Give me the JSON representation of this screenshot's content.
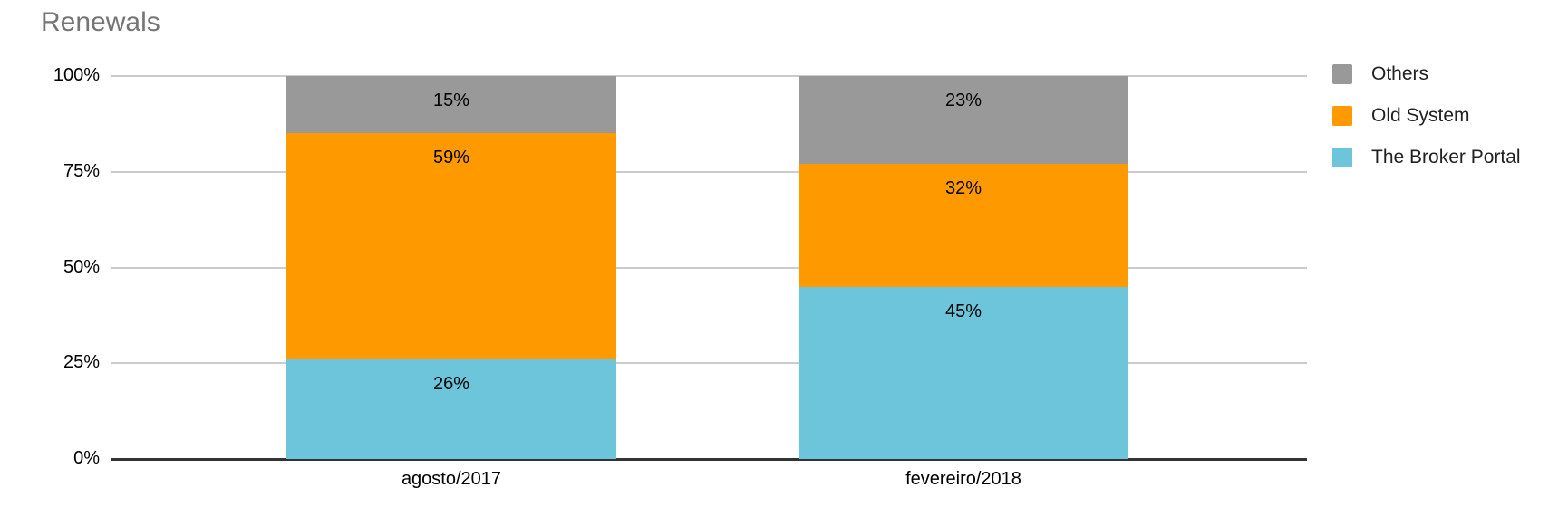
{
  "title": "Renewals",
  "colors": {
    "others": "#999999",
    "old_system": "#ff9900",
    "broker_portal": "#6cc5db",
    "gridline": "#cccccc",
    "axis": "#333333",
    "title_text": "#757575",
    "label_text": "#000000"
  },
  "chart_data": {
    "type": "bar",
    "stacked": true,
    "title": "Renewals",
    "xlabel": "",
    "ylabel": "",
    "ylim": [
      0,
      100
    ],
    "grid": true,
    "legend_position": "right",
    "categories": [
      "agosto/2017",
      "fevereiro/2018"
    ],
    "series": [
      {
        "name": "The Broker Portal",
        "color": "#6cc5db",
        "values": [
          26,
          45
        ],
        "labels": [
          "26%",
          "45%"
        ]
      },
      {
        "name": "Old System",
        "color": "#ff9900",
        "values": [
          59,
          32
        ],
        "labels": [
          "59%",
          "32%"
        ]
      },
      {
        "name": "Others",
        "color": "#999999",
        "values": [
          15,
          23
        ],
        "labels": [
          "15%",
          "23%"
        ]
      }
    ],
    "yticks": [
      {
        "label": "0%",
        "value": 0
      },
      {
        "label": "25%",
        "value": 25
      },
      {
        "label": "50%",
        "value": 50
      },
      {
        "label": "75%",
        "value": 75
      },
      {
        "label": "100%",
        "value": 100
      }
    ]
  },
  "legend": {
    "items": [
      {
        "label": "Others",
        "color": "#999999"
      },
      {
        "label": "Old System",
        "color": "#ff9900"
      },
      {
        "label": "The Broker Portal",
        "color": "#6cc5db"
      }
    ]
  }
}
